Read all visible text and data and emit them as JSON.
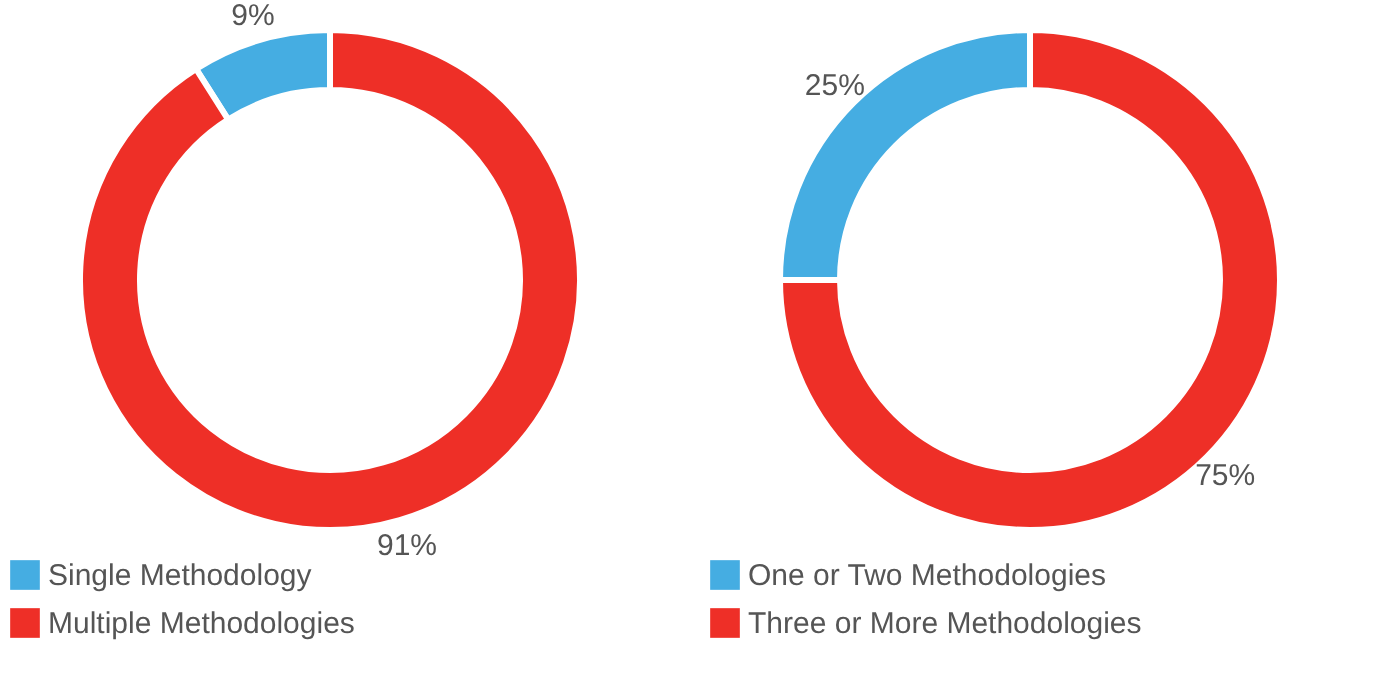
{
  "chart_data": [
    {
      "type": "donut",
      "categories": [
        "Single Methodology",
        "Multiple Methodologies"
      ],
      "values": [
        9,
        91
      ],
      "colors": [
        "#45ade2",
        "#ee2f27"
      ],
      "value_labels": [
        "9%",
        "91%"
      ],
      "legend": "bottom"
    },
    {
      "type": "donut",
      "categories": [
        "One or Two Methodologies",
        "Three or More Methodologies"
      ],
      "values": [
        25,
        75
      ],
      "colors": [
        "#45ade2",
        "#ee2f27"
      ],
      "value_labels": [
        "25%",
        "75%"
      ],
      "legend": "bottom"
    }
  ]
}
